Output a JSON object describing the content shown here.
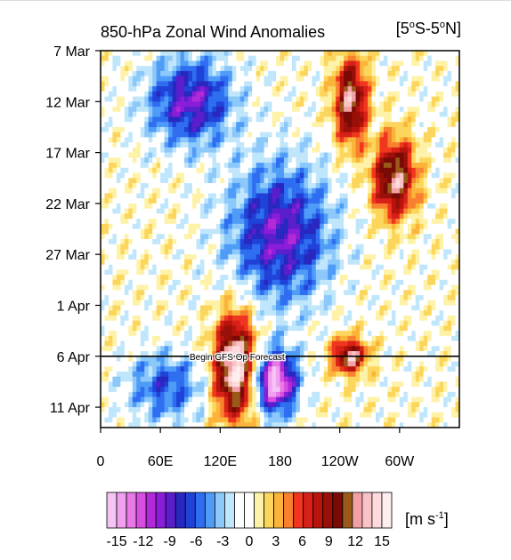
{
  "chart_data": {
    "type": "heatmap",
    "title": "850-hPa Zonal Wind Anomalies",
    "region": "[5°S-5°N]",
    "region_parts": {
      "open": "[5",
      "deg1": "o",
      "mid": "S-5",
      "deg2": "o",
      "close": "N]"
    },
    "x_ticks": [
      "0",
      "60E",
      "120E",
      "180",
      "120W",
      "60W"
    ],
    "x_tick_degrees_east": [
      0,
      60,
      120,
      180,
      240,
      300
    ],
    "x_range_degrees_east": [
      0,
      360
    ],
    "y_ticks": [
      "7 Mar",
      "12 Mar",
      "17 Mar",
      "22 Mar",
      "27 Mar",
      "1 Apr",
      "6 Apr",
      "11 Apr"
    ],
    "y_tick_days_from_7mar": [
      0,
      5,
      10,
      15,
      20,
      25,
      30,
      35
    ],
    "y_range_days_from_7mar": [
      0,
      37
    ],
    "forecast_line": {
      "label": "Begin GFS Op Forecast",
      "date": "6 Apr"
    },
    "colorbar": {
      "tick_labels": [
        "-15",
        "-12",
        "-9",
        "-6",
        "-3",
        "0",
        "3",
        "6",
        "9",
        "12",
        "15"
      ],
      "tick_values": [
        -15,
        -12,
        -9,
        -6,
        -3,
        0,
        3,
        6,
        9,
        12,
        15
      ],
      "colors": [
        "#f5c4f5",
        "#f0a0ee",
        "#e878e6",
        "#d84ee0",
        "#b22ad8",
        "#8a1ed8",
        "#5a1ecc",
        "#2828c0",
        "#1f43d8",
        "#2f6ef0",
        "#4f9cf8",
        "#8cc8fa",
        "#c0e6fb",
        "#ffffff",
        "#ffffff",
        "#fdf2a8",
        "#fcd65c",
        "#fbb33a",
        "#f8802e",
        "#f0361e",
        "#d82018",
        "#b8140c",
        "#981008",
        "#7a0a06",
        "#9a5a1a",
        "#f2a0a6",
        "#f8c2c6",
        "#fddadc",
        "#feeeee"
      ]
    },
    "unit_text": "[m s",
    "unit_exp": "-1",
    "unit_close": "]",
    "features": [
      {
        "sign": "negative",
        "lon": [
          40,
          140
        ],
        "days": [
          0,
          10
        ],
        "peak": -9
      },
      {
        "sign": "negative",
        "lon": [
          120,
          240
        ],
        "days": [
          10,
          26
        ],
        "peak": -9
      },
      {
        "sign": "negative",
        "lon": [
          150,
          200
        ],
        "days": [
          29,
          36
        ],
        "peak": -15
      },
      {
        "sign": "negative",
        "lon": [
          20,
          110
        ],
        "days": [
          29,
          37
        ],
        "peak": -6
      },
      {
        "sign": "positive",
        "lon": [
          232,
          270
        ],
        "days": [
          0,
          10
        ],
        "peak": 12
      },
      {
        "sign": "positive",
        "lon": [
          270,
          320
        ],
        "days": [
          8,
          17
        ],
        "peak": 12
      },
      {
        "sign": "positive",
        "lon": [
          110,
          160
        ],
        "days": [
          25,
          37
        ],
        "peak": 15
      },
      {
        "sign": "positive",
        "lon": [
          230,
          270
        ],
        "days": [
          28,
          32
        ],
        "peak": 12
      }
    ]
  }
}
